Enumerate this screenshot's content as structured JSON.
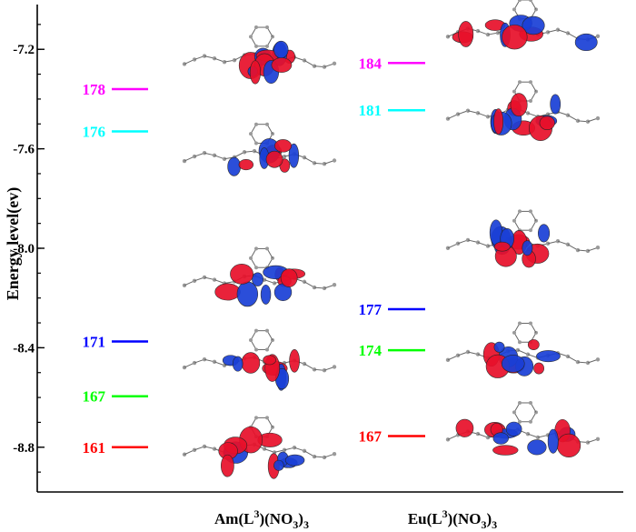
{
  "chart_data": {
    "type": "energy-level-diagram",
    "ylabel": "Energy level(ev)",
    "ylim": [
      -8.98,
      -7.02
    ],
    "yticks": [
      -7.2,
      -7.6,
      -8.0,
      -8.4,
      -8.8
    ],
    "ytick_labels": [
      "-7.2",
      "-7.6",
      "-8.0",
      "-8.4",
      "-8.8"
    ],
    "categories": [
      {
        "label": "Am(L³)(NO₃)₃",
        "base": "Am(L",
        "sup": "3",
        "mid": ")(NO",
        "sub": "3",
        "end": ")",
        "sub2": "3"
      },
      {
        "label": "Eu(L³)(NO₃)₃",
        "base": "Eu(L",
        "sup": "3",
        "mid": ")(NO",
        "sub": "3",
        "end": ")",
        "sub2": "3"
      }
    ],
    "levels": [
      {
        "category": 0,
        "orbital": "178",
        "energy": -7.36,
        "color": "#ff00ff"
      },
      {
        "category": 0,
        "orbital": "176",
        "energy": -7.53,
        "color": "#00ffff"
      },
      {
        "category": 0,
        "orbital": "171",
        "energy": -8.375,
        "color": "#0000ff"
      },
      {
        "category": 0,
        "orbital": "167",
        "energy": -8.595,
        "color": "#00ff00"
      },
      {
        "category": 0,
        "orbital": "161",
        "energy": -8.8,
        "color": "#ff0000"
      },
      {
        "category": 1,
        "orbital": "184",
        "energy": -7.255,
        "color": "#ff00ff"
      },
      {
        "category": 1,
        "orbital": "181",
        "energy": -7.445,
        "color": "#00ffff"
      },
      {
        "category": 1,
        "orbital": "177",
        "energy": -8.245,
        "color": "#0000ff"
      },
      {
        "category": 1,
        "orbital": "174",
        "energy": -8.41,
        "color": "#00ff00"
      },
      {
        "category": 1,
        "orbital": "167",
        "energy": -8.755,
        "color": "#ff0000"
      }
    ],
    "orbital_images": [
      {
        "category": 0,
        "energy": -7.23
      },
      {
        "category": 0,
        "energy": -7.62
      },
      {
        "category": 0,
        "energy": -8.12
      },
      {
        "category": 0,
        "energy": -8.45
      },
      {
        "category": 0,
        "energy": -8.8
      },
      {
        "category": 1,
        "energy": -7.12
      },
      {
        "category": 1,
        "energy": -7.45
      },
      {
        "category": 1,
        "energy": -7.97
      },
      {
        "category": 1,
        "energy": -8.42
      },
      {
        "category": 1,
        "energy": -8.74
      }
    ],
    "colors": {
      "lobe_positive": "#e8102a",
      "lobe_negative": "#1a3fd6",
      "atom": "#9a9a9a"
    }
  }
}
